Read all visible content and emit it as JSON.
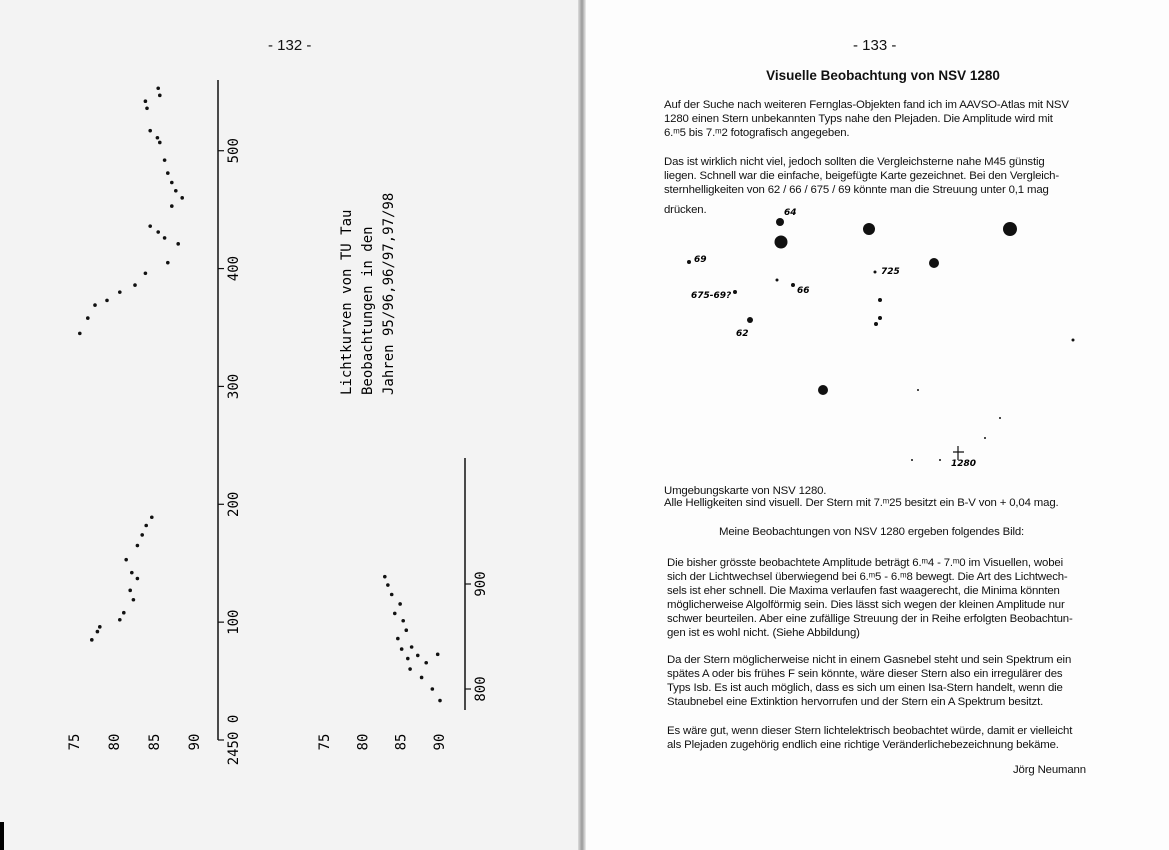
{
  "left_page": {
    "page_number": "- 132 -"
  },
  "light_curves": {
    "title_lines": [
      "Lichtkurven von TU Tau",
      "Beobachtungen in den",
      "Jahren 95/96,96/97,97/98"
    ],
    "panels": [
      {
        "xlim": [
          0,
          560
        ],
        "xticks": [
          {
            "value": 0,
            "label": "2450 0"
          },
          100,
          200,
          300,
          400,
          500
        ],
        "ylim": [
          7.5,
          9.0
        ],
        "yticks": [
          {
            "value": 7.5,
            "label": "75"
          },
          {
            "value": 8.0,
            "label": "80"
          },
          {
            "value": 8.5,
            "label": "85"
          },
          {
            "value": 9.0,
            "label": "90"
          }
        ],
        "x": [
          553,
          547,
          542,
          536,
          517,
          511,
          507,
          492,
          481,
          473,
          466,
          460,
          453,
          436,
          431,
          426,
          421,
          405,
          396,
          386,
          380,
          373,
          369,
          358,
          345,
          189,
          182,
          174,
          165,
          153,
          142,
          137,
          127,
          119,
          108,
          102,
          96,
          92,
          85
        ],
        "y": [
          8.54,
          8.56,
          8.38,
          8.4,
          8.44,
          8.53,
          8.56,
          8.62,
          8.66,
          8.71,
          8.76,
          8.84,
          8.71,
          8.44,
          8.54,
          8.62,
          8.79,
          8.66,
          8.38,
          8.25,
          8.06,
          7.9,
          7.75,
          7.66,
          7.56,
          8.46,
          8.39,
          8.34,
          8.28,
          8.14,
          8.21,
          8.28,
          8.19,
          8.23,
          8.11,
          8.06,
          7.81,
          7.78,
          7.71
        ]
      },
      {
        "xlim": [
          780,
          1020
        ],
        "xticks": [
          800,
          900
        ],
        "ylim": [
          7.5,
          9.0
        ],
        "yticks": [
          {
            "value": 7.5,
            "label": "75"
          },
          {
            "value": 8.0,
            "label": "80"
          },
          {
            "value": 8.5,
            "label": "85"
          },
          {
            "value": 9.0,
            "label": "90"
          }
        ],
        "x": [
          907,
          899,
          890,
          881,
          872,
          865,
          856,
          848,
          838,
          840,
          829,
          832,
          825,
          833,
          819,
          811,
          800,
          789
        ],
        "y": [
          8.28,
          8.32,
          8.37,
          8.48,
          8.41,
          8.52,
          8.56,
          8.45,
          8.5,
          8.63,
          8.58,
          8.71,
          8.82,
          8.97,
          8.61,
          8.76,
          8.9,
          9.0
        ]
      }
    ]
  },
  "right_page": {
    "page_number": "- 133 -",
    "title": "Visuelle Beobachtung von NSV 1280",
    "intro": [
      [
        "Auf der Suche nach weiteren Fernglas-Objekten fand ich im AAVSO-Atlas mit  NSV",
        "1280 einen Stern unbekannten Typs nahe den Plejaden. Die Amplitude  wird mit",
        "6.ᵐ5  bis  7.ᵐ2 fotografisch angegeben."
      ],
      [
        "Das ist wirklich nicht viel,  jedoch sollten die Vergleichsterne nahe M45 günstig",
        "liegen. Schnell war die  einfache, beigefügte Karte gezeichnet. Bei den Vergleich-",
        "sternhelligkeiten von  62 / 66 / 675 / 69 könnte man die Streuung unter 0,1 mag",
        "drücken."
      ]
    ],
    "map_labels": [
      "64",
      "69",
      "725",
      "66",
      "675-69?",
      "62",
      "1280"
    ],
    "caption": [
      "Umgebungskarte von NSV  1280.",
      "Alle Helligkeiten sind visuell. Der Stern mit 7.ᵐ25 besitzt ein B-V von + 0,04 mag."
    ],
    "subheading": "Meine Beobachtungen von NSV 1280 ergeben folgendes Bild:",
    "body": [
      [
        "Die bisher  grösste beobachtete Amplitude beträgt 6.ᵐ4 - 7.ᵐ0 im Visuellen, wobei",
        "sich der Lichtwechsel überwiegend bei 6.ᵐ5 - 6.ᵐ8 bewegt. Die Art des Lichtwech-",
        "sels ist eher schnell. Die Maxima verlaufen fast waagerecht, die Minima könnten",
        "möglicherweise Algolförmig sein. Dies lässt sich wegen der kleinen Amplitude nur",
        "schwer beurteilen. Aber eine zufällige Streuung  der in Reihe erfolgten Beobachtun-",
        "gen ist es wohl nicht. (Siehe Abbildung)"
      ],
      [
        "Da der Stern möglicherweise nicht in einem Gasnebel steht und sein Spektrum ein",
        "spätes A oder bis frühes F sein könnte, wäre dieser Stern also ein irregulärer des",
        "Typs Isb. Es ist auch möglich, dass es sich um einen Isa-Stern handelt, wenn die",
        "Staubnebel eine Extinktion hervorrufen und der Stern ein A Spektrum besitzt."
      ],
      [
        "Es wäre gut, wenn dieser Stern lichtelektrisch beobachtet würde, damit er vielleicht",
        "als Plejaden zugehörig endlich eine richtige Veränderlichebezeichnung bekäme."
      ]
    ],
    "signature": "Jörg Neumann"
  }
}
